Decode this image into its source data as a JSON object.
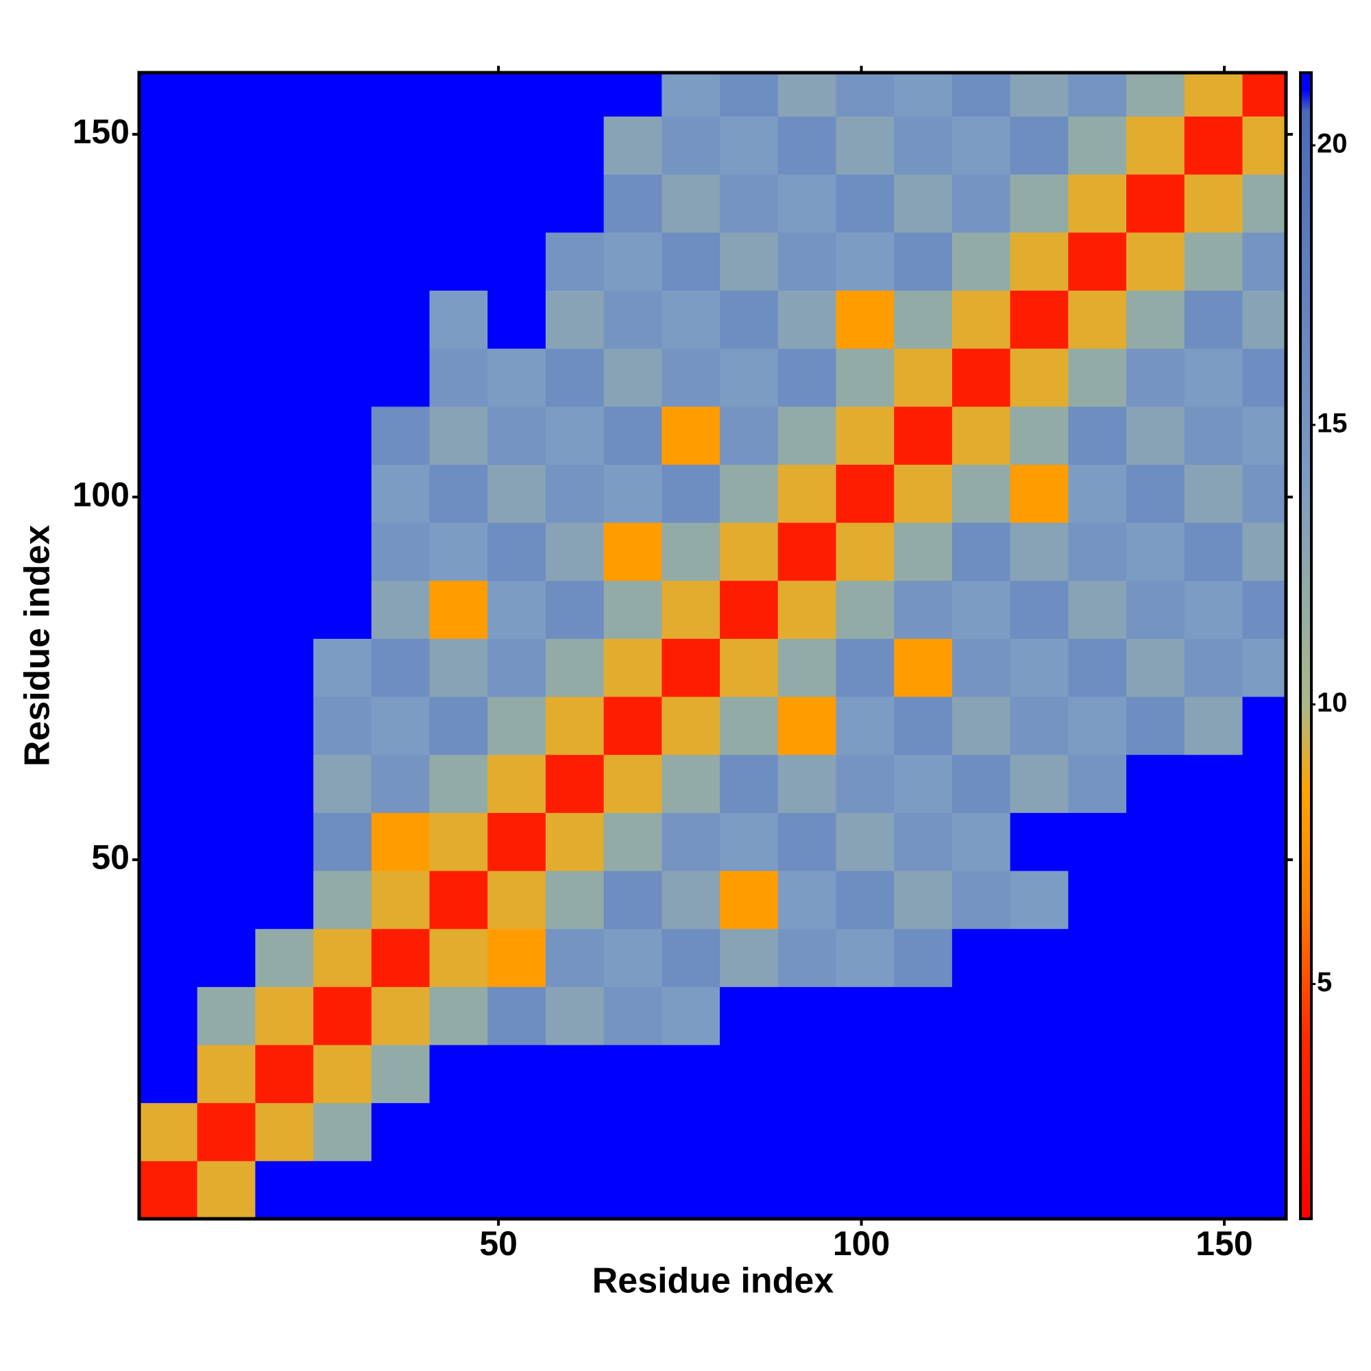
{
  "chart_data": {
    "type": "heatmap",
    "xlabel": "Residue index",
    "ylabel": "Residue index",
    "x_edges": [
      0.5,
      8.5,
      16.5,
      24.5,
      32.5,
      40.5,
      48.5,
      56.5,
      64.5,
      72.5,
      80.5,
      88.5,
      96.5,
      104.5,
      112.5,
      120.5,
      128.5,
      136.5,
      144.5,
      152.5,
      158.5
    ],
    "y_edges": [
      0.5,
      8.5,
      16.5,
      24.5,
      32.5,
      40.5,
      48.5,
      56.5,
      64.5,
      72.5,
      80.5,
      88.5,
      96.5,
      104.5,
      112.5,
      120.5,
      128.5,
      136.5,
      144.5,
      152.5,
      158.5
    ],
    "xlim": [
      0.5,
      158.5
    ],
    "ylim": [
      0.5,
      158.5
    ],
    "xticks": [
      50,
      100,
      150
    ],
    "yticks": [
      50,
      100,
      150
    ],
    "zlim": [
      0.8,
      21.3
    ],
    "zticks": [
      5,
      10,
      15,
      20
    ],
    "colorscale": [
      [
        0.8,
        "#ff0000"
      ],
      [
        4,
        "#ff2a00"
      ],
      [
        6.5,
        "#ff8000"
      ],
      [
        8.5,
        "#ffa500"
      ],
      [
        10,
        "#a9b98a"
      ],
      [
        14,
        "#7d9cc4"
      ],
      [
        20.6,
        "#4a6ab8"
      ],
      [
        21,
        "#0000ff"
      ],
      [
        21.3,
        "#0000ff"
      ]
    ],
    "z": [
      [
        3,
        9,
        21,
        21,
        21,
        21,
        21,
        21,
        21,
        21,
        21,
        21,
        21,
        21,
        21,
        21,
        21,
        21,
        21,
        21
      ],
      [
        9,
        3,
        9,
        12,
        21,
        21,
        21,
        21,
        21,
        21,
        21,
        21,
        21,
        21,
        21,
        21,
        21,
        21,
        21,
        21
      ],
      [
        21,
        9,
        3,
        9,
        12,
        21,
        21,
        21,
        21,
        21,
        21,
        21,
        21,
        21,
        21,
        21,
        21,
        21,
        21,
        21
      ],
      [
        21,
        12,
        9,
        3,
        9,
        12,
        16,
        13,
        15,
        14,
        21,
        21,
        21,
        21,
        21,
        21,
        21,
        21,
        21,
        21
      ],
      [
        21,
        21,
        12,
        9,
        3,
        9,
        8,
        15,
        14,
        16,
        13,
        15,
        14,
        16,
        21,
        21,
        21,
        21,
        21,
        21
      ],
      [
        21,
        21,
        21,
        12,
        9,
        3,
        9,
        12,
        16,
        13,
        8,
        14,
        16,
        13,
        15,
        14,
        21,
        21,
        21,
        21
      ],
      [
        21,
        21,
        21,
        16,
        8,
        9,
        3,
        9,
        12,
        15,
        14,
        16,
        13,
        15,
        14,
        21,
        21,
        21,
        21,
        21
      ],
      [
        21,
        21,
        21,
        13,
        15,
        12,
        9,
        3,
        9,
        12,
        16,
        13,
        15,
        14,
        16,
        13,
        15,
        21,
        21,
        21
      ],
      [
        21,
        21,
        21,
        15,
        14,
        16,
        12,
        9,
        3,
        9,
        12,
        8,
        14,
        16,
        13,
        15,
        14,
        16,
        13,
        21
      ],
      [
        21,
        21,
        21,
        14,
        16,
        13,
        15,
        12,
        9,
        3,
        9,
        12,
        16,
        8,
        15,
        14,
        16,
        13,
        15,
        14
      ],
      [
        21,
        21,
        21,
        21,
        13,
        8,
        14,
        16,
        12,
        9,
        3,
        9,
        12,
        15,
        14,
        16,
        13,
        15,
        14,
        16
      ],
      [
        21,
        21,
        21,
        21,
        15,
        14,
        16,
        13,
        8,
        12,
        9,
        3,
        9,
        12,
        16,
        13,
        15,
        14,
        16,
        13
      ],
      [
        21,
        21,
        21,
        21,
        14,
        16,
        13,
        15,
        14,
        16,
        12,
        9,
        3,
        9,
        12,
        8,
        14,
        16,
        13,
        15
      ],
      [
        21,
        21,
        21,
        21,
        16,
        13,
        15,
        14,
        16,
        8,
        15,
        12,
        9,
        3,
        9,
        12,
        16,
        13,
        15,
        14
      ],
      [
        21,
        21,
        21,
        21,
        21,
        15,
        14,
        16,
        13,
        15,
        14,
        16,
        12,
        9,
        3,
        9,
        12,
        15,
        14,
        16
      ],
      [
        21,
        21,
        21,
        21,
        21,
        14,
        21,
        13,
        15,
        14,
        16,
        13,
        8,
        12,
        9,
        3,
        9,
        12,
        16,
        13
      ],
      [
        21,
        21,
        21,
        21,
        21,
        21,
        21,
        15,
        14,
        16,
        13,
        15,
        14,
        16,
        12,
        9,
        3,
        9,
        12,
        15
      ],
      [
        21,
        21,
        21,
        21,
        21,
        21,
        21,
        21,
        16,
        13,
        15,
        14,
        16,
        13,
        15,
        12,
        9,
        3,
        9,
        12
      ],
      [
        21,
        21,
        21,
        21,
        21,
        21,
        21,
        21,
        13,
        15,
        14,
        16,
        13,
        15,
        14,
        16,
        12,
        9,
        3,
        9
      ],
      [
        21,
        21,
        21,
        21,
        21,
        21,
        21,
        21,
        21,
        14,
        16,
        13,
        15,
        14,
        16,
        13,
        15,
        12,
        9,
        3
      ]
    ]
  }
}
